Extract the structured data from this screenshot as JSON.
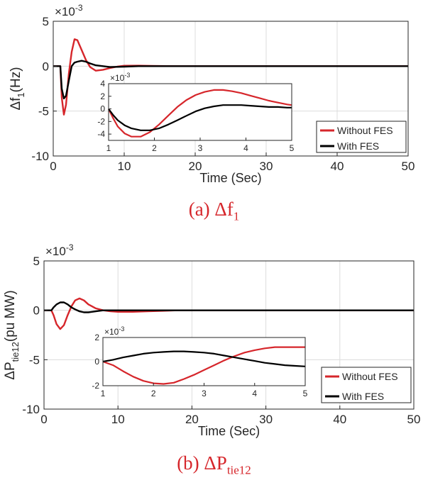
{
  "chart_data": [
    {
      "id": "a",
      "type": "line",
      "caption": {
        "prefix": "(a) Δf",
        "sub": "1"
      },
      "ylabel": {
        "main": "Δf",
        "sub": "1",
        "tail": "(Hz)"
      },
      "xlabel": "Time (Sec)",
      "exponent": {
        "base": "×10",
        "power": "-3"
      },
      "xlim": [
        0,
        50
      ],
      "ylim": [
        -10,
        5
      ],
      "xticks": [
        0,
        10,
        20,
        30,
        40,
        50
      ],
      "yticks": [
        5,
        0,
        -5,
        -10
      ],
      "grid": true,
      "legend_position": "bottom-right",
      "series": [
        {
          "name": "Without FES",
          "color": "#d6262b",
          "x": [
            0,
            1.0,
            1.2,
            1.5,
            1.8,
            2.2,
            2.6,
            3.0,
            3.4,
            4.0,
            4.6,
            5.2,
            6.0,
            7.0,
            8.0,
            9.0,
            10,
            12,
            14,
            16,
            18,
            20,
            25,
            30,
            40,
            50
          ],
          "y": [
            0,
            0,
            -3.5,
            -5.4,
            -4.3,
            -0.8,
            1.6,
            3.0,
            2.9,
            1.8,
            0.7,
            -0.1,
            -0.5,
            -0.4,
            -0.2,
            -0.05,
            0.05,
            0.06,
            0.03,
            0.01,
            0,
            0,
            0,
            0,
            0,
            0
          ]
        },
        {
          "name": "With FES",
          "color": "#000000",
          "x": [
            0,
            1.0,
            1.2,
            1.5,
            1.8,
            2.2,
            2.6,
            3.0,
            3.4,
            4.0,
            4.6,
            5.2,
            6.0,
            7.0,
            8.0,
            10,
            12,
            14,
            16,
            18,
            20,
            25,
            30,
            40,
            50
          ],
          "y": [
            0,
            0,
            -2.5,
            -3.6,
            -3.3,
            -1.6,
            0.0,
            0.4,
            0.5,
            0.6,
            0.5,
            0.3,
            0.1,
            0,
            -0.1,
            -0.05,
            0,
            0,
            0,
            0,
            0,
            0,
            0,
            0,
            0
          ]
        }
      ],
      "inset": {
        "xlim": [
          1,
          5
        ],
        "ylim": [
          -5,
          4
        ],
        "xticks": [
          1,
          2,
          3,
          4,
          5
        ],
        "yticks": [
          4,
          2,
          0,
          -2,
          -4
        ],
        "exponent": {
          "base": "×10",
          "power": "-3"
        },
        "series": [
          {
            "name": "Without FES",
            "color": "#d6262b",
            "x": [
              1.0,
              1.1,
              1.2,
              1.35,
              1.5,
              1.7,
              1.9,
              2.1,
              2.3,
              2.5,
              2.7,
              2.9,
              3.1,
              3.3,
              3.5,
              3.7,
              3.9,
              4.1,
              4.3,
              4.5,
              4.7,
              4.9,
              5.0
            ],
            "y": [
              0.0,
              -1.5,
              -2.8,
              -3.9,
              -4.4,
              -4.4,
              -3.7,
              -2.5,
              -1.1,
              0.3,
              1.4,
              2.2,
              2.7,
              3.0,
              3.0,
              2.8,
              2.5,
              2.1,
              1.7,
              1.3,
              1.0,
              0.7,
              0.6
            ]
          },
          {
            "name": "With FES",
            "color": "#000000",
            "x": [
              1.0,
              1.1,
              1.2,
              1.35,
              1.5,
              1.7,
              1.9,
              2.1,
              2.3,
              2.5,
              2.7,
              2.9,
              3.1,
              3.3,
              3.5,
              3.7,
              3.9,
              4.1,
              4.3,
              4.5,
              4.7,
              4.9,
              5.0
            ],
            "y": [
              0.0,
              -1.0,
              -1.8,
              -2.6,
              -3.1,
              -3.4,
              -3.4,
              -3.1,
              -2.5,
              -1.8,
              -1.1,
              -0.4,
              0.1,
              0.4,
              0.6,
              0.6,
              0.6,
              0.5,
              0.4,
              0.3,
              0.3,
              0.2,
              0.2
            ]
          }
        ]
      }
    },
    {
      "id": "b",
      "type": "line",
      "caption": {
        "prefix": "(b) ΔP",
        "sub": "tie12"
      },
      "ylabel": {
        "main": "ΔP",
        "sub": "tie12",
        "tail": "(pu MW)"
      },
      "xlabel": "Time (Sec)",
      "exponent": {
        "base": "×10",
        "power": "-3"
      },
      "xlim": [
        0,
        50
      ],
      "ylim": [
        -10,
        5
      ],
      "xticks": [
        0,
        10,
        20,
        30,
        40,
        50
      ],
      "yticks": [
        5,
        0,
        -5,
        -10
      ],
      "grid": true,
      "legend_position": "bottom-right",
      "series": [
        {
          "name": "Without FES",
          "color": "#d6262b",
          "x": [
            0,
            1.0,
            1.3,
            1.7,
            2.2,
            2.7,
            3.2,
            3.7,
            4.2,
            4.8,
            5.4,
            6.0,
            7.0,
            8.0,
            9.0,
            10,
            12,
            14,
            16,
            18,
            20,
            25,
            30,
            40,
            50
          ],
          "y": [
            0,
            0,
            -0.5,
            -1.4,
            -1.9,
            -1.5,
            -0.5,
            0.4,
            1.0,
            1.2,
            1.0,
            0.6,
            0.2,
            0,
            -0.1,
            -0.15,
            -0.15,
            -0.1,
            -0.05,
            0,
            0,
            0,
            0,
            0,
            0
          ]
        },
        {
          "name": "With FES",
          "color": "#000000",
          "x": [
            0,
            1.0,
            1.3,
            1.7,
            2.2,
            2.7,
            3.2,
            3.7,
            4.2,
            4.8,
            5.4,
            6.0,
            7.0,
            8.0,
            10,
            12,
            14,
            16,
            18,
            20,
            25,
            30,
            40,
            50
          ],
          "y": [
            0,
            0,
            0.3,
            0.6,
            0.8,
            0.8,
            0.6,
            0.3,
            0.1,
            -0.1,
            -0.2,
            -0.2,
            -0.1,
            0,
            0,
            0,
            0,
            0,
            0,
            0,
            0,
            0,
            0,
            0
          ]
        }
      ],
      "inset": {
        "xlim": [
          1,
          5
        ],
        "ylim": [
          -2,
          2
        ],
        "xticks": [
          1,
          2,
          3,
          4,
          5
        ],
        "yticks": [
          2,
          0,
          -2
        ],
        "exponent": {
          "base": "×10",
          "power": "-3"
        },
        "series": [
          {
            "name": "Without FES",
            "color": "#d6262b",
            "x": [
              1.0,
              1.2,
              1.4,
              1.6,
              1.8,
              2.0,
              2.2,
              2.4,
              2.6,
              2.8,
              3.0,
              3.2,
              3.4,
              3.6,
              3.8,
              4.0,
              4.2,
              4.4,
              4.6,
              4.8,
              5.0
            ],
            "y": [
              0.0,
              -0.3,
              -0.8,
              -1.25,
              -1.6,
              -1.8,
              -1.85,
              -1.75,
              -1.45,
              -1.1,
              -0.7,
              -0.3,
              0.1,
              0.45,
              0.75,
              0.95,
              1.1,
              1.2,
              1.2,
              1.2,
              1.2
            ]
          },
          {
            "name": "With FES",
            "color": "#000000",
            "x": [
              1.0,
              1.2,
              1.4,
              1.6,
              1.8,
              2.0,
              2.2,
              2.4,
              2.6,
              2.8,
              3.0,
              3.2,
              3.4,
              3.6,
              3.8,
              4.0,
              4.2,
              4.4,
              4.6,
              4.8,
              5.0
            ],
            "y": [
              0.0,
              0.15,
              0.35,
              0.5,
              0.65,
              0.75,
              0.8,
              0.85,
              0.85,
              0.8,
              0.75,
              0.65,
              0.5,
              0.35,
              0.2,
              0.05,
              -0.1,
              -0.2,
              -0.3,
              -0.35,
              -0.4
            ]
          }
        ]
      }
    }
  ]
}
